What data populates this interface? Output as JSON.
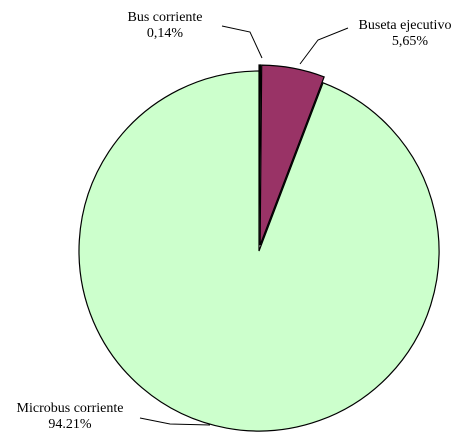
{
  "chart_data": {
    "type": "pie",
    "categories": [
      "Bus corriente",
      "Buseta ejecutivo",
      "Microbus corriente"
    ],
    "values": [
      0.14,
      5.65,
      94.21
    ],
    "value_labels": [
      "0,14%",
      "5,65%",
      "94.21%"
    ],
    "colors": [
      "#000000",
      "#993366",
      "#ccffcc"
    ]
  }
}
